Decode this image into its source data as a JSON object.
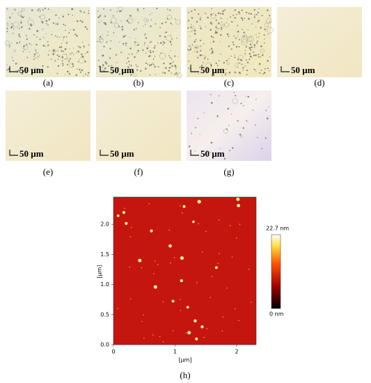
{
  "panels": [
    {
      "label": "(a)",
      "scale_bar": "50 µm"
    },
    {
      "label": "(b)",
      "scale_bar": "50 µm"
    },
    {
      "label": "(c)",
      "scale_bar": "50 µm"
    },
    {
      "label": "(d)",
      "scale_bar": "50 µm"
    },
    {
      "label": "(e)",
      "scale_bar": "50 µm"
    },
    {
      "label": "(f)",
      "scale_bar": "50 µm"
    },
    {
      "label": "(g)",
      "scale_bar": "50 µm"
    }
  ],
  "afm": {
    "label": "(h)",
    "x_label": "[µm]",
    "y_label": "[µm]",
    "xticks": [
      "0",
      "1",
      "2"
    ],
    "yticks": [
      "0.0",
      "0.5",
      "1.0",
      "1.5",
      "2.0"
    ],
    "colorbar": {
      "max": "22.7 nm",
      "min": "0 nm"
    }
  }
}
